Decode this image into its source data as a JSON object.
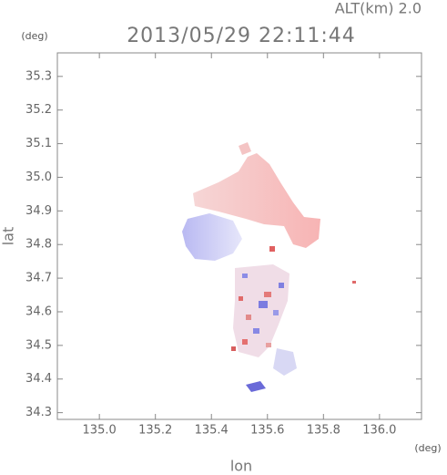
{
  "chart_data": {
    "type": "map",
    "title": "2013/05/29 22:11:44",
    "altitude_label": "ALT(km) 2.0",
    "y_unit": "(deg)",
    "x_unit": "(deg)",
    "xlabel": "lon",
    "ylabel": "lat",
    "xlim": [
      134.85,
      136.15
    ],
    "ylim": [
      34.28,
      35.37
    ],
    "xticks": [
      {
        "value": 135,
        "label": "135.0"
      },
      135.2,
      135.4,
      135.6,
      135.8,
      {
        "value": 136,
        "label": "136.0"
      }
    ],
    "yticks": [
      35.3,
      35.2,
      35.1,
      {
        "value": 35,
        "label": "35.0"
      },
      34.9,
      34.8,
      34.7,
      34.6,
      34.5,
      34.4,
      34.3
    ]
  }
}
